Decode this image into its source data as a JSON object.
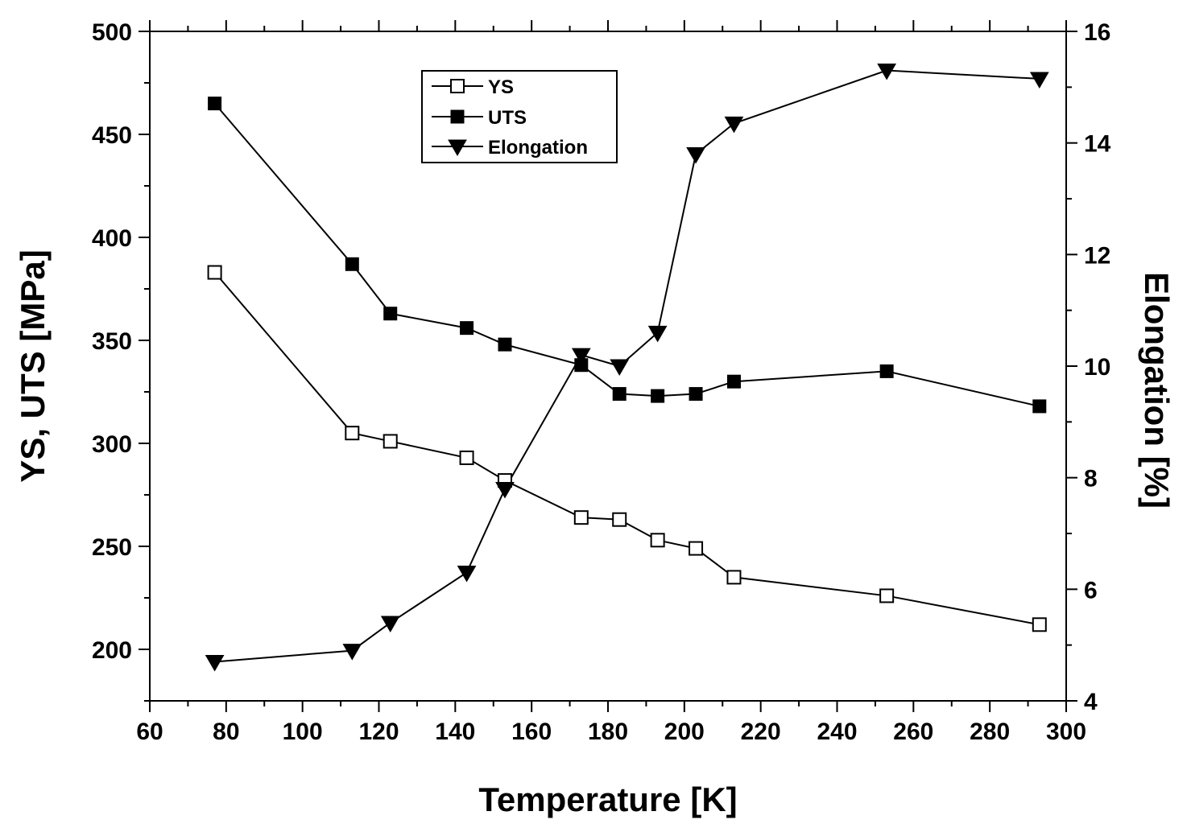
{
  "chart_data": {
    "type": "line",
    "title": "",
    "xlabel": "Temperature [K]",
    "ylabel": "YS, UTS [MPa]",
    "y2label": "Elongation [%]",
    "xlim": [
      60,
      300
    ],
    "ylim": [
      175,
      500
    ],
    "y2lim": [
      4,
      16
    ],
    "x_ticks": [
      60,
      80,
      100,
      120,
      140,
      160,
      180,
      200,
      220,
      240,
      260,
      280,
      300
    ],
    "y_ticks": [
      200,
      250,
      300,
      350,
      400,
      450,
      500
    ],
    "y2_ticks": [
      4,
      6,
      8,
      10,
      12,
      14,
      16
    ],
    "legend_position": "top-center",
    "grid": false,
    "x": [
      77,
      113,
      123,
      143,
      153,
      173,
      183,
      193,
      203,
      213,
      253,
      293
    ],
    "series": [
      {
        "name": "YS",
        "axis": "left",
        "marker": "open-square",
        "values": [
          383,
          305,
          301,
          293,
          282,
          264,
          263,
          253,
          249,
          235,
          226,
          212
        ]
      },
      {
        "name": "UTS",
        "axis": "left",
        "marker": "filled-square",
        "values": [
          465,
          387,
          363,
          356,
          348,
          338,
          324,
          323,
          324,
          330,
          335,
          318
        ]
      },
      {
        "name": "Elongation",
        "axis": "right",
        "marker": "filled-triangle-down",
        "values": [
          4.7,
          4.9,
          5.4,
          6.3,
          7.8,
          10.2,
          10.0,
          10.6,
          13.8,
          14.35,
          15.3,
          15.15
        ]
      }
    ]
  }
}
